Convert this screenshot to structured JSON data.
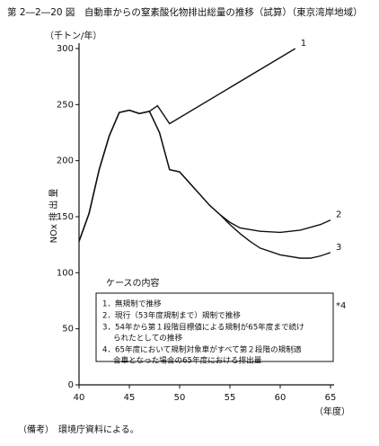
{
  "chart_data": {
    "type": "line",
    "title": "第 2―2―20 図　自動車からの窒素酸化物排出総量の推移（試算）（東京湾岸地域）",
    "y_unit": "（千トン/年）",
    "y_label": "NOx 排 出 量",
    "x_label": "（年度）",
    "note": "（備考）　環境庁資料による。",
    "annotation": "*4",
    "legend_title": "ケースの内容",
    "legend_items": [
      [
        "1．無規制で推移"
      ],
      [
        "2．現行（53年度規制まで）規制で推移"
      ],
      [
        "3．54年から第１段階目標値による規制が65年度まで続け",
        "られたとしての推移"
      ],
      [
        "4．65年度において規制対象車がすべて第２段階の規制適",
        "合車となった場合の65年度における排出量"
      ]
    ],
    "xlim": [
      40,
      65
    ],
    "xticks": [
      40,
      45,
      50,
      55,
      60,
      65
    ],
    "ylim": [
      0,
      300
    ],
    "yticks": [
      0,
      50,
      100,
      150,
      200,
      250,
      300
    ],
    "series": [
      {
        "name": "1",
        "color": "#111111",
        "x": [
          40,
          41,
          42,
          43,
          44,
          45,
          46,
          47,
          47.8,
          49,
          61.5
        ],
        "values": [
          128,
          153,
          192,
          222,
          243,
          245,
          242,
          244,
          249,
          233,
          300
        ]
      },
      {
        "name": "2",
        "color": "#111111",
        "x": [
          40,
          41,
          42,
          43,
          44,
          45,
          46,
          47,
          48,
          49,
          50,
          51,
          52,
          53,
          54,
          55,
          56,
          58,
          60,
          62,
          64,
          65
        ],
        "values": [
          128,
          153,
          192,
          222,
          243,
          245,
          242,
          244,
          225,
          192,
          190,
          180,
          170,
          160,
          152,
          145,
          140,
          137,
          136,
          138,
          143,
          147
        ]
      },
      {
        "name": "3",
        "color": "#111111",
        "x": [
          40,
          41,
          42,
          43,
          44,
          45,
          46,
          47,
          48,
          49,
          50,
          51,
          52,
          53,
          54,
          55,
          56,
          57,
          58,
          60,
          62,
          63,
          64,
          65
        ],
        "values": [
          128,
          153,
          192,
          222,
          243,
          245,
          242,
          244,
          225,
          192,
          190,
          180,
          170,
          160,
          152,
          143,
          135,
          128,
          122,
          116,
          113,
          113,
          115,
          118
        ]
      }
    ]
  }
}
